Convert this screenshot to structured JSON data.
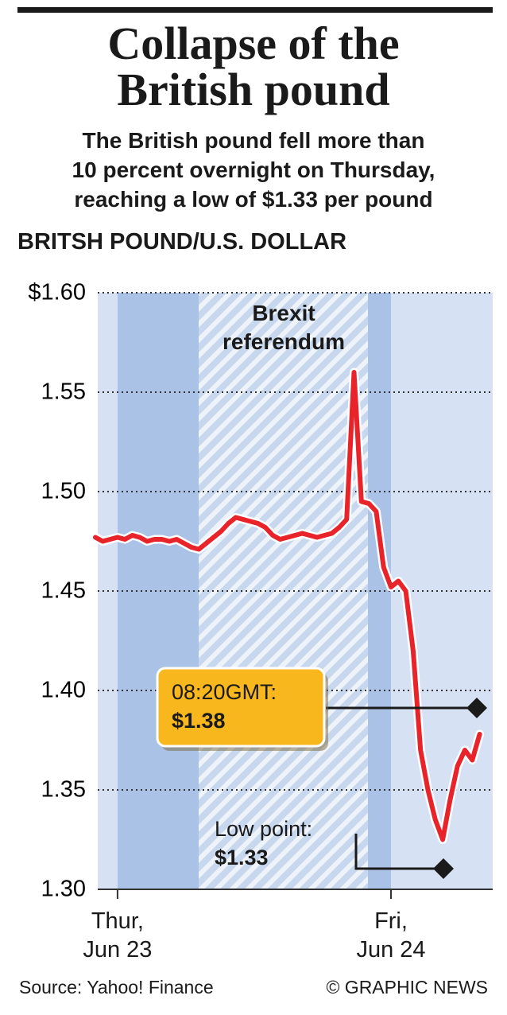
{
  "chart_data": {
    "type": "line",
    "title": "Collapse of the\nBritish pound",
    "subtitle": "The British pound fell more than\n10 percent overnight on Thursday,\nreaching a low of $1.33 per pound",
    "y_axis_label": "BRITSH POUND/U.S. DOLLAR",
    "shaded_label": "Brexit\nreferendum",
    "annotations": [
      {
        "title": "08:20GMT:",
        "label": "$1.38"
      },
      {
        "title": "Low point:",
        "label": "$1.33"
      }
    ],
    "source": "Source: Yahoo! Finance",
    "credit": "© GRAPHIC NEWS",
    "color": "#e8232a",
    "categories": [
      null,
      null,
      null,
      "Thur,\nJun 23",
      null,
      null,
      null,
      null,
      null,
      null,
      null,
      null,
      null,
      null,
      null,
      null,
      null,
      null,
      null,
      null,
      null,
      null,
      null,
      null,
      null,
      null,
      null,
      null,
      null,
      null,
      null,
      null,
      null,
      null,
      null,
      null,
      null,
      null,
      null,
      null,
      "Fri,\nJun 24",
      null,
      null,
      null,
      null,
      null,
      null,
      null,
      null,
      null,
      null,
      null,
      null
    ],
    "values": [
      1.477,
      1.475,
      1.476,
      1.477,
      1.476,
      1.478,
      1.477,
      1.475,
      1.476,
      1.476,
      1.475,
      1.476,
      1.474,
      1.472,
      1.471,
      1.474,
      1.477,
      1.48,
      1.484,
      1.487,
      1.486,
      1.485,
      1.484,
      1.482,
      1.478,
      1.476,
      1.477,
      1.478,
      1.479,
      1.478,
      1.477,
      1.478,
      1.479,
      1.482,
      1.486,
      1.56,
      1.495,
      1.494,
      1.49,
      1.462,
      1.452,
      1.455,
      1.45,
      1.42,
      1.37,
      1.35,
      1.335,
      1.325,
      1.345,
      1.362,
      1.37,
      1.365,
      1.378
    ],
    "ylim": [
      1.3,
      1.6
    ],
    "yticks": [
      {
        "value": 1.3,
        "label": "1.30"
      },
      {
        "value": 1.35,
        "label": "1.35"
      },
      {
        "value": 1.4,
        "label": "1.40"
      },
      {
        "value": 1.45,
        "label": "1.45"
      },
      {
        "value": 1.5,
        "label": "1.50"
      },
      {
        "value": 1.55,
        "label": "1.55"
      },
      {
        "value": 1.6,
        "label": "$1.60"
      }
    ],
    "grid": true
  }
}
